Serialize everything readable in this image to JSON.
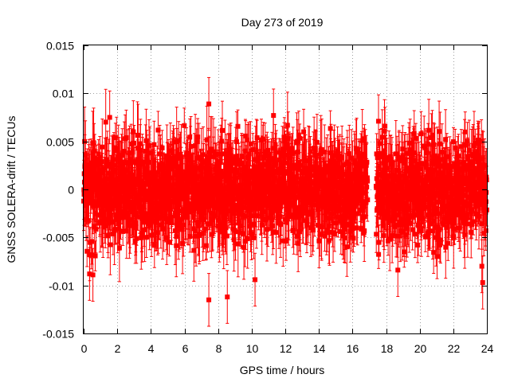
{
  "chart_data": {
    "type": "scatter",
    "title": "Day 273 of 2019",
    "xlabel": "GPS time / hours",
    "ylabel": "GNSS SOLERA-drift / TECUs",
    "xlim": [
      0,
      24
    ],
    "ylim": [
      -0.015,
      0.015
    ],
    "x_ticks": [
      0,
      2,
      4,
      6,
      8,
      10,
      12,
      14,
      16,
      18,
      20,
      22,
      24
    ],
    "y_ticks": [
      -0.015,
      -0.01,
      -0.005,
      0,
      0.005,
      0.01,
      0.015
    ],
    "x_tick_labels": [
      "0",
      "2",
      "4",
      "6",
      "8",
      "10",
      "12",
      "14",
      "16",
      "18",
      "20",
      "22",
      "24"
    ],
    "y_tick_labels": [
      "-0.015",
      "-0.01",
      "-0.005",
      "0",
      "0.005",
      "0.01",
      "0.015"
    ],
    "grid": true,
    "legend": "none",
    "series_color": "#ff0000",
    "data_gap_hours": [
      16.9,
      17.4
    ],
    "y_spread_typical": 0.0045,
    "error_bar_typical": 0.0025,
    "point_count": 2200,
    "notable_points": [
      {
        "x": 0.35,
        "y": -0.0088
      },
      {
        "x": 0.55,
        "y": -0.0089
      },
      {
        "x": 7.45,
        "y": 0.0089
      },
      {
        "x": 7.45,
        "y": -0.0115
      },
      {
        "x": 8.55,
        "y": -0.0112
      },
      {
        "x": 10.2,
        "y": -0.0094
      },
      {
        "x": 18.7,
        "y": -0.0084
      },
      {
        "x": 23.7,
        "y": -0.008
      },
      {
        "x": 23.75,
        "y": -0.0097
      },
      {
        "x": 1.55,
        "y": 0.0075
      },
      {
        "x": 11.3,
        "y": 0.0077
      },
      {
        "x": 17.55,
        "y": 0.0071
      }
    ]
  }
}
